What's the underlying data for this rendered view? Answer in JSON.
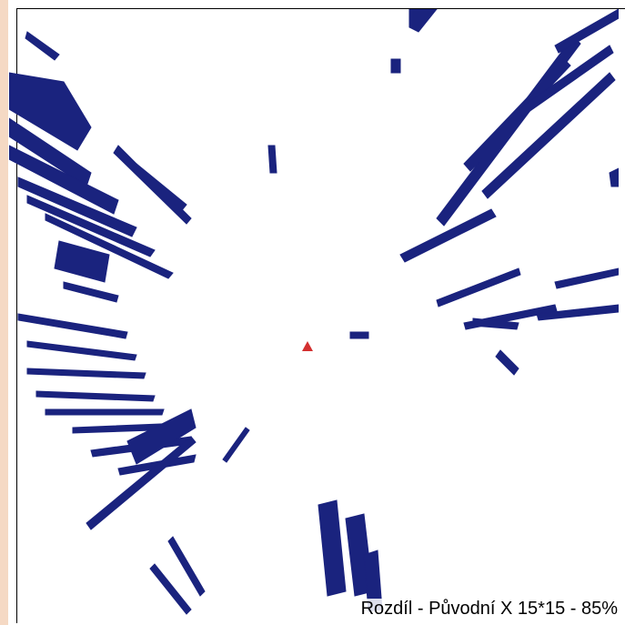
{
  "map": {
    "caption": "Rozdíl - Původní X 15*15 - 85%",
    "colors": {
      "shadow": "#1a237e",
      "background": "#ffffff",
      "observer": "#d32f2f",
      "border_accent": "#f5d9c4"
    },
    "observer_icon": "red-triangle-marker"
  }
}
